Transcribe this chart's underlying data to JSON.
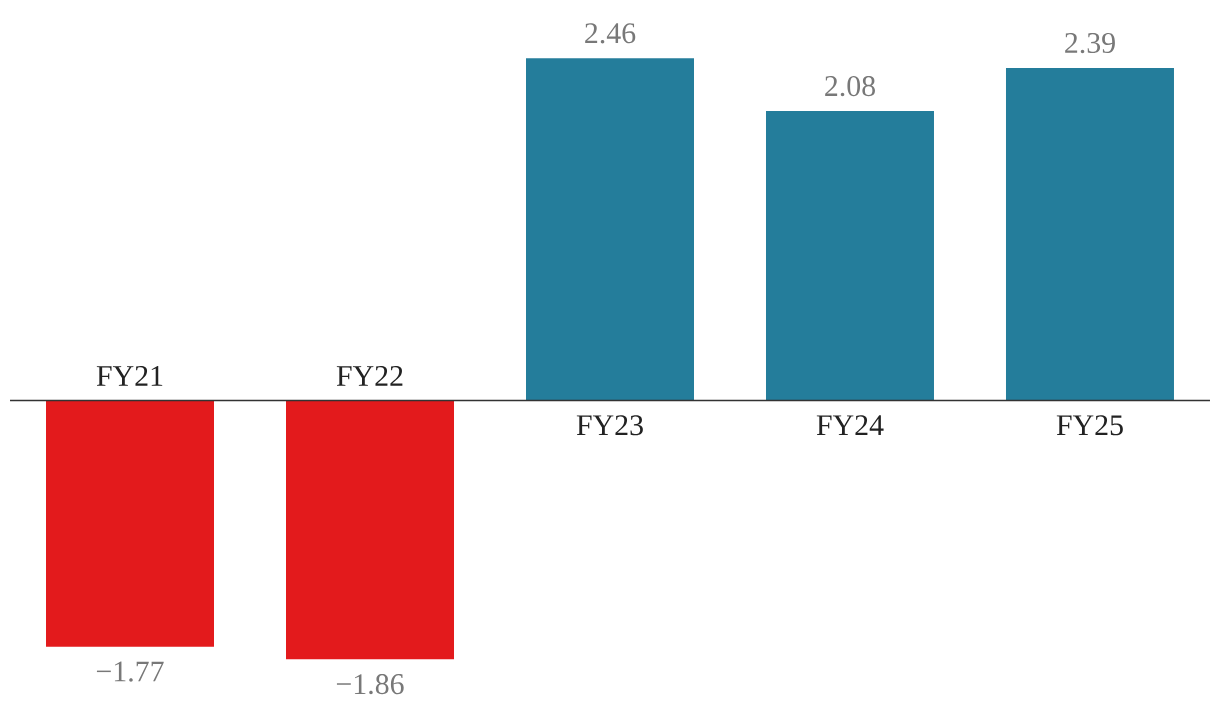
{
  "chart_data": {
    "type": "bar",
    "categories": [
      "FY21",
      "FY22",
      "FY23",
      "FY24",
      "FY25"
    ],
    "values": [
      -1.77,
      -1.86,
      2.46,
      2.08,
      2.39
    ],
    "colors": [
      "#e31a1c",
      "#e31a1c",
      "#247d9b",
      "#247d9b",
      "#247d9b"
    ],
    "data_labels": true
  }
}
